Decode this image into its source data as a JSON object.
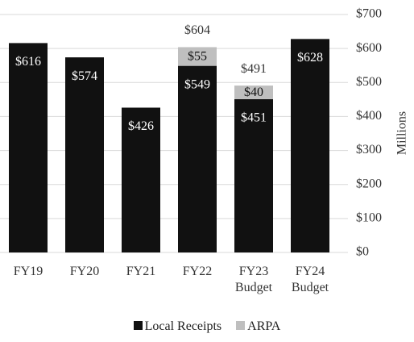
{
  "chart_data": {
    "type": "stacked_bar",
    "y_label": "Millions",
    "categories": [
      "FY19",
      "FY20",
      "FY21",
      "FY22",
      "FY23 Budget",
      "FY24 Budget"
    ],
    "series": [
      {
        "name": "Local Receipts",
        "color": "#111111",
        "label_color": "#ffffff",
        "values": [
          616,
          574,
          426,
          549,
          451,
          628
        ],
        "value_labels": [
          "$616",
          "$574",
          "$426",
          "$549",
          "$451",
          "$628"
        ]
      },
      {
        "name": "ARPA",
        "color": "#bfbfbf",
        "label_color": "#111111",
        "values": [
          null,
          null,
          null,
          55,
          40,
          null
        ],
        "value_labels": [
          null,
          null,
          null,
          "$55",
          "$40",
          null
        ]
      }
    ],
    "totals": {
      "values": [
        null,
        null,
        null,
        604,
        491,
        null
      ],
      "value_labels": [
        null,
        null,
        null,
        "$604",
        "$491",
        null
      ]
    },
    "ylim": [
      0,
      700
    ],
    "yticks": [
      {
        "value": 0,
        "label": "$0"
      },
      {
        "value": 100,
        "label": "$100"
      },
      {
        "value": 200,
        "label": "$200"
      },
      {
        "value": 300,
        "label": "$300"
      },
      {
        "value": 400,
        "label": "$400"
      },
      {
        "value": 500,
        "label": "$500"
      },
      {
        "value": 600,
        "label": "$600"
      },
      {
        "value": 700,
        "label": "$700"
      }
    ],
    "grid": true
  }
}
